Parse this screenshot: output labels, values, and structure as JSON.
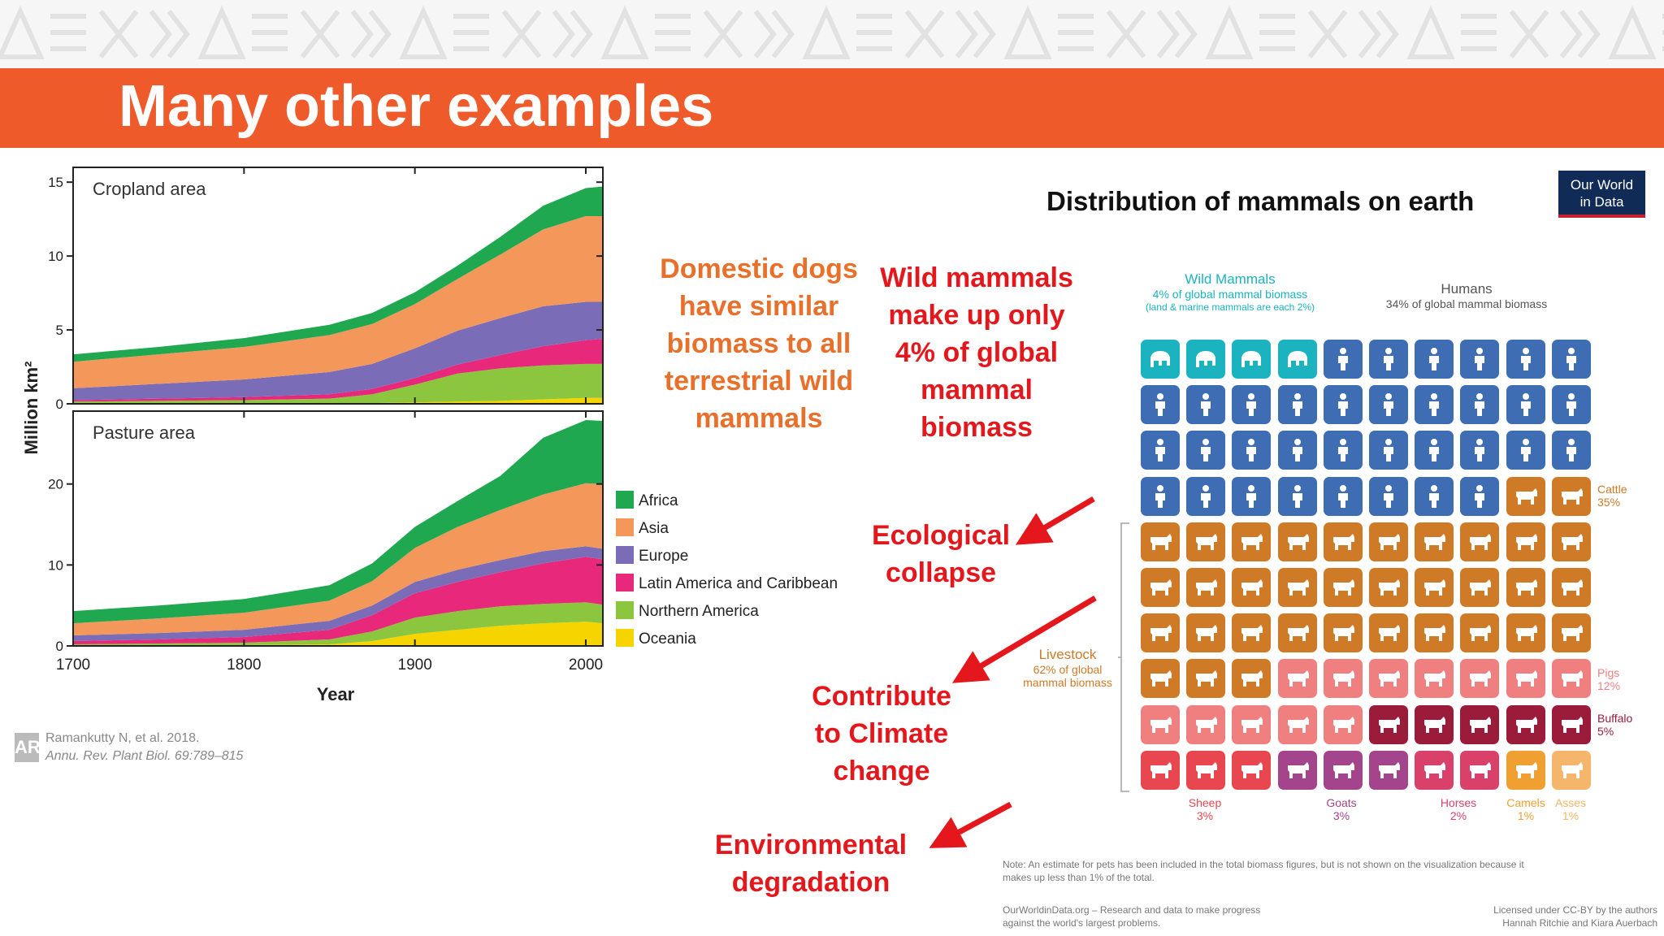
{
  "slide_title": "Many other examples",
  "chart_data": [
    {
      "type": "area",
      "panel": "Cropland area",
      "x": [
        1700,
        1750,
        1800,
        1850,
        1875,
        1900,
        1925,
        1950,
        1975,
        2000,
        2010
      ],
      "stacking_order_bottom_to_top": [
        "Oceania",
        "Northern America",
        "Latin America and Caribbean",
        "Europe",
        "Asia",
        "Africa"
      ],
      "series": [
        {
          "name": "Oceania",
          "values": [
            0.05,
            0.05,
            0.05,
            0.05,
            0.05,
            0.1,
            0.15,
            0.2,
            0.3,
            0.4,
            0.4
          ]
        },
        {
          "name": "Northern America",
          "values": [
            0.1,
            0.15,
            0.2,
            0.3,
            0.6,
            1.2,
            1.9,
            2.2,
            2.3,
            2.3,
            2.3
          ]
        },
        {
          "name": "Latin America and Caribbean",
          "values": [
            0.1,
            0.15,
            0.2,
            0.3,
            0.35,
            0.45,
            0.6,
            0.9,
            1.3,
            1.6,
            1.7
          ]
        },
        {
          "name": "Europe",
          "values": [
            0.8,
            1.0,
            1.2,
            1.5,
            1.7,
            2.0,
            2.3,
            2.5,
            2.7,
            2.6,
            2.5
          ]
        },
        {
          "name": "Asia",
          "values": [
            1.8,
            2.0,
            2.2,
            2.5,
            2.7,
            3.0,
            3.5,
            4.3,
            5.2,
            5.8,
            5.8
          ]
        },
        {
          "name": "Africa",
          "values": [
            0.5,
            0.5,
            0.6,
            0.7,
            0.75,
            0.8,
            0.9,
            1.2,
            1.6,
            1.9,
            2.0
          ]
        }
      ],
      "xlim": [
        1700,
        2010
      ],
      "ylim": [
        0,
        16
      ],
      "yticks": [
        0,
        5,
        10,
        15
      ]
    },
    {
      "type": "area",
      "panel": "Pasture area",
      "x": [
        1700,
        1750,
        1800,
        1850,
        1875,
        1900,
        1925,
        1950,
        1975,
        2000,
        2010
      ],
      "stacking_order_bottom_to_top": [
        "Oceania",
        "Northern America",
        "Latin America and Caribbean",
        "Europe",
        "Asia",
        "Africa"
      ],
      "series": [
        {
          "name": "Oceania",
          "values": [
            0.1,
            0.1,
            0.1,
            0.2,
            0.6,
            1.5,
            2.0,
            2.5,
            2.8,
            3.0,
            2.8
          ]
        },
        {
          "name": "Northern America",
          "values": [
            0.1,
            0.2,
            0.3,
            0.6,
            1.2,
            2.0,
            2.3,
            2.4,
            2.4,
            2.4,
            2.3
          ]
        },
        {
          "name": "Latin America and Caribbean",
          "values": [
            0.4,
            0.5,
            0.7,
            1.2,
            2.0,
            3.0,
            3.6,
            4.2,
            5.0,
            5.6,
            5.6
          ]
        },
        {
          "name": "Europe",
          "values": [
            0.7,
            0.8,
            0.9,
            1.1,
            1.2,
            1.4,
            1.5,
            1.5,
            1.5,
            1.3,
            1.3
          ]
        },
        {
          "name": "Asia",
          "values": [
            1.5,
            1.8,
            2.1,
            2.5,
            3.0,
            4.2,
            5.3,
            6.2,
            7.0,
            7.8,
            8.0
          ]
        },
        {
          "name": "Africa",
          "values": [
            1.5,
            1.6,
            1.7,
            1.9,
            2.2,
            2.6,
            3.2,
            4.2,
            7.0,
            7.8,
            7.8
          ]
        }
      ],
      "xlim": [
        1700,
        2010
      ],
      "ylim": [
        0,
        29
      ],
      "yticks": [
        0,
        10,
        20
      ]
    },
    {
      "type": "table",
      "title": "Distribution of mammals on earth",
      "unit": "percent of global mammal biomass",
      "groups": [
        {
          "name": "Wild Mammals",
          "value": 4
        },
        {
          "name": "Humans",
          "value": 34
        },
        {
          "name": "Livestock",
          "value": 62
        }
      ],
      "livestock_breakdown": [
        {
          "name": "Cattle",
          "value": 35
        },
        {
          "name": "Pigs",
          "value": 12
        },
        {
          "name": "Buffalo",
          "value": 5
        },
        {
          "name": "Sheep",
          "value": 3
        },
        {
          "name": "Goats",
          "value": 3
        },
        {
          "name": "Horses",
          "value": 2
        },
        {
          "name": "Camels",
          "value": 1
        },
        {
          "name": "Asses",
          "value": 1
        }
      ]
    }
  ],
  "chart_labels": {
    "ylabel": "Million km²",
    "xlabel": "Year",
    "panel1": "Cropland area",
    "panel2": "Pasture area",
    "xticks": [
      "1700",
      "1800",
      "1900",
      "2000"
    ],
    "yticks1": [
      "0",
      "5",
      "10",
      "15"
    ],
    "yticks2": [
      "0",
      "10",
      "20"
    ]
  },
  "legend": [
    {
      "label": "Africa",
      "color": "#1fa84f"
    },
    {
      "label": "Asia",
      "color": "#f4975a"
    },
    {
      "label": "Europe",
      "color": "#7b6cb8"
    },
    {
      "label": "Latin America and Caribbean",
      "color": "#e8287a"
    },
    {
      "label": "Northern America",
      "color": "#8cc63f"
    },
    {
      "label": "Oceania",
      "color": "#f5d400"
    }
  ],
  "citation": {
    "line1": "Ramankutty N, et al. 2018.",
    "line2": "Annu. Rev. Plant Biol. 69:789–815",
    "logo": "AR"
  },
  "callouts": {
    "dogs": [
      "Domestic dogs",
      "have similar",
      "biomass to all",
      "terrestrial wild",
      "mammals"
    ],
    "wild": [
      "Wild mammals",
      "make up only",
      "4% of global",
      "mammal",
      "biomass"
    ],
    "eco": [
      "Ecological",
      "collapse"
    ],
    "climate": [
      "Contribute",
      "to Climate",
      "change"
    ],
    "env": [
      "Environmental",
      "degradation"
    ]
  },
  "owid": {
    "title": "Distribution of mammals on earth",
    "logo_line1": "Our World",
    "logo_line2": "in Data",
    "wild_title": "Wild Mammals",
    "wild_sub1": "4% of global mammal biomass",
    "wild_sub2": "(land & marine mammals are each 2%)",
    "humans_title": "Humans",
    "humans_sub": "34% of global mammal biomass",
    "livestock_title": "Livestock",
    "livestock_sub1": "62% of global",
    "livestock_sub2": "mammal biomass",
    "cattle": "Cattle",
    "cattle_pct": "35%",
    "pigs": "Pigs",
    "pigs_pct": "12%",
    "buffalo": "Buffalo",
    "buffalo_pct": "5%",
    "sheep": "Sheep",
    "sheep_pct": "3%",
    "goats": "Goats",
    "goats_pct": "3%",
    "horses": "Horses",
    "horses_pct": "2%",
    "camels": "Camels",
    "camels_pct": "1%",
    "asses": "Asses",
    "asses_pct": "1%",
    "note1": "Note: An estimate for pets has been included in the total biomass figures, but is not shown on the visualization because it",
    "note2": "makes up less than 1% of the total.",
    "footer_left1": "OurWorldinData.org – Research and data to make progress",
    "footer_left2": "against the world's largest problems.",
    "footer_right1": "Licensed under CC-BY by the authors",
    "footer_right2": "Hannah Ritchie and Kiara Auerbach"
  },
  "grid_rows": [
    [
      "W",
      "W",
      "W",
      "W",
      "H",
      "H",
      "H",
      "H",
      "H",
      "H"
    ],
    [
      "H",
      "H",
      "H",
      "H",
      "H",
      "H",
      "H",
      "H",
      "H",
      "H"
    ],
    [
      "H",
      "H",
      "H",
      "H",
      "H",
      "H",
      "H",
      "H",
      "H",
      "H"
    ],
    [
      "H",
      "H",
      "H",
      "H",
      "H",
      "H",
      "H",
      "H",
      "C",
      "C"
    ],
    [
      "C",
      "C",
      "C",
      "C",
      "C",
      "C",
      "C",
      "C",
      "C",
      "C"
    ],
    [
      "C",
      "C",
      "C",
      "C",
      "C",
      "C",
      "C",
      "C",
      "C",
      "C"
    ],
    [
      "C",
      "C",
      "C",
      "C",
      "C",
      "C",
      "C",
      "C",
      "C",
      "C"
    ],
    [
      "C",
      "C",
      "C",
      "P",
      "P",
      "P",
      "P",
      "P",
      "P",
      "P"
    ],
    [
      "P",
      "P",
      "P",
      "P",
      "P",
      "B",
      "B",
      "B",
      "B",
      "B"
    ],
    [
      "S",
      "S",
      "S",
      "G",
      "G",
      "G",
      "R",
      "R",
      "M",
      "A"
    ]
  ],
  "grid_colors": {
    "W": "#1bb3bf",
    "H": "#3f6db3",
    "C": "#cf7a27",
    "P": "#f08080",
    "B": "#9b1c3a",
    "S": "#e8474f",
    "G": "#a3448c",
    "R": "#d9416a",
    "M": "#f0a030",
    "A": "#f5b56a"
  }
}
